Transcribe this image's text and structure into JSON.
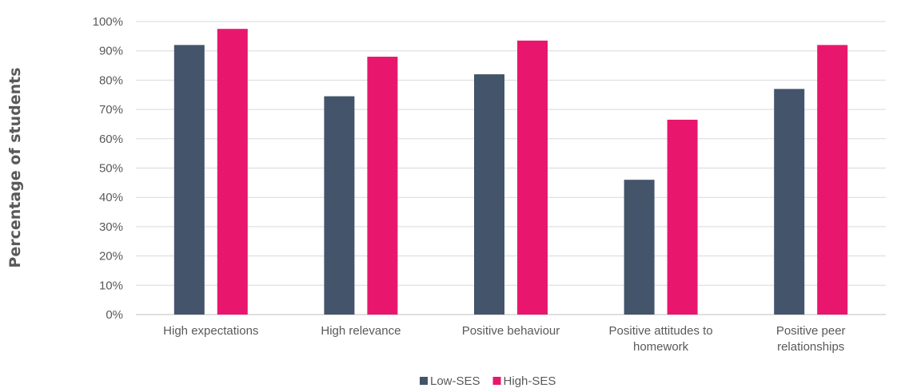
{
  "chart_data": {
    "type": "bar",
    "ylabel": "Percentage of students",
    "ylim": [
      0,
      100
    ],
    "yticks": [
      "0%",
      "10%",
      "20%",
      "30%",
      "40%",
      "50%",
      "60%",
      "70%",
      "80%",
      "90%",
      "100%"
    ],
    "ytick_values": [
      0,
      10,
      20,
      30,
      40,
      50,
      60,
      70,
      80,
      90,
      100
    ],
    "categories": [
      [
        "High expectations"
      ],
      [
        "High relevance"
      ],
      [
        "Positive behaviour"
      ],
      [
        "Positive attitudes to",
        "homework"
      ],
      [
        "Positive peer",
        "relationships"
      ]
    ],
    "series": [
      {
        "name": "Low-SES",
        "color": "#44546a",
        "values": [
          92,
          74.5,
          82,
          46,
          77
        ]
      },
      {
        "name": "High-SES",
        "color": "#e8176d",
        "values": [
          97.5,
          88,
          93.5,
          66.5,
          92
        ]
      }
    ],
    "grid": true,
    "legend_position": "bottom"
  }
}
